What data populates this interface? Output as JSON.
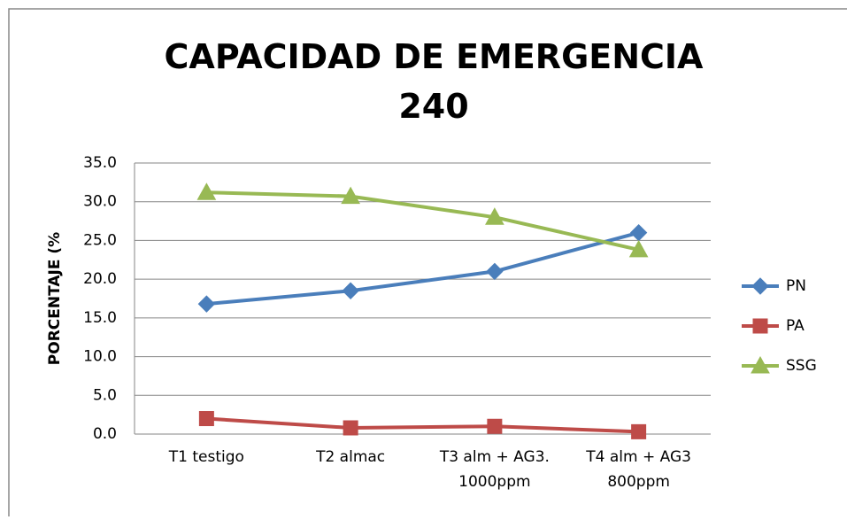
{
  "chart_data": {
    "type": "line",
    "title": "CAPACIDAD DE EMERGENCIA\n240",
    "ylabel": "PORCENTAJE (%",
    "categories": [
      "T1 testigo",
      "T2 almac",
      "T3 alm + AG3.\n1000ppm",
      "T4 alm + AG3\n800ppm"
    ],
    "series": [
      {
        "name": "PN",
        "color": "#4a7ebb",
        "marker": "diamond",
        "values": [
          16.8,
          18.5,
          21.0,
          26.0
        ]
      },
      {
        "name": "PA",
        "color": "#be4b48",
        "marker": "square",
        "values": [
          2.0,
          0.8,
          1.0,
          0.3
        ]
      },
      {
        "name": "SSG",
        "color": "#98b954",
        "marker": "triangle",
        "values": [
          31.2,
          30.7,
          28.0,
          23.8
        ]
      }
    ],
    "ylim": [
      0,
      35
    ],
    "yticks": [
      {
        "value": 0,
        "label": "0.0"
      },
      {
        "value": 5,
        "label": "5.0"
      },
      {
        "value": 10,
        "label": "10.0"
      },
      {
        "value": 15,
        "label": "15.0"
      },
      {
        "value": 20,
        "label": "20.0"
      },
      {
        "value": 25,
        "label": "25.0"
      },
      {
        "value": 30,
        "label": "30.0"
      },
      {
        "value": 35,
        "label": "35.0"
      }
    ],
    "grid": true,
    "legend": "right"
  }
}
